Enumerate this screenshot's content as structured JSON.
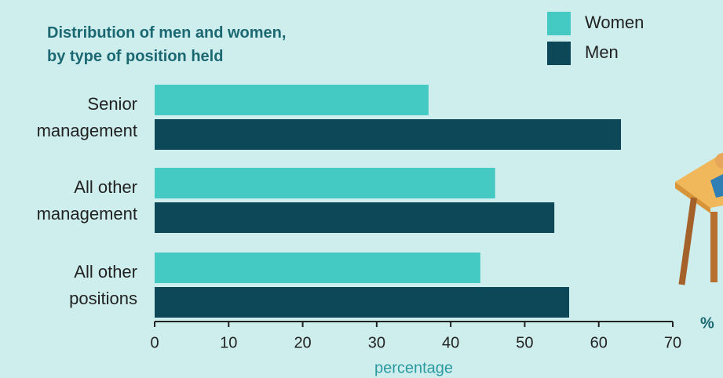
{
  "chart_data": {
    "type": "hbar",
    "title": "Distribution of men and women,\nby type of position held",
    "categories": [
      "Senior\nmanagement",
      "All other\nmanagement",
      "All other\npositions"
    ],
    "series": [
      {
        "name": "Women",
        "color": "#45c9c3",
        "values": [
          37,
          46,
          44
        ]
      },
      {
        "name": "Men",
        "color": "#0d4859",
        "values": [
          63,
          54,
          56
        ]
      }
    ],
    "xlim": [
      0,
      70
    ],
    "xticks": [
      0,
      10,
      20,
      30,
      40,
      50,
      60,
      70
    ],
    "xlabel": "percentage",
    "unit_label": "%"
  }
}
